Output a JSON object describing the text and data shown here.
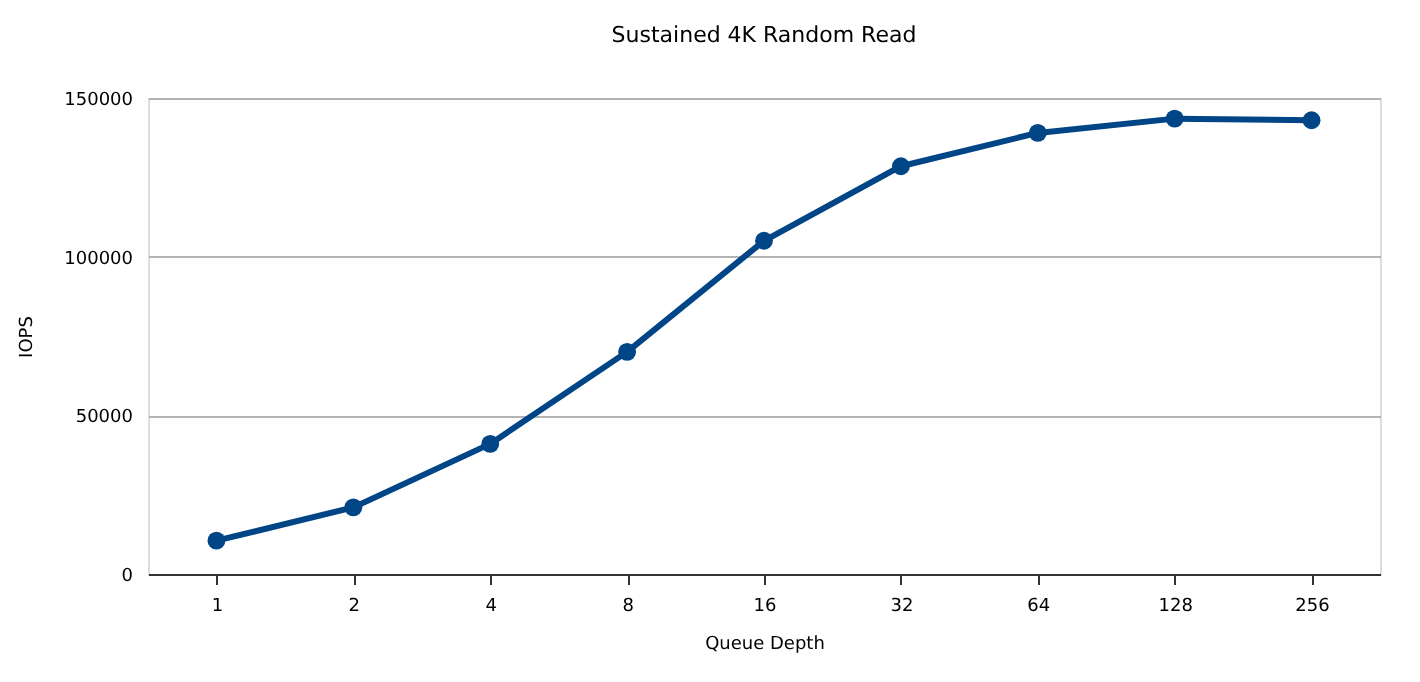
{
  "chart_data": {
    "type": "line",
    "title": "Sustained 4K Random Read",
    "xlabel": "Queue Depth",
    "ylabel": "IOPS",
    "categories": [
      "1",
      "2",
      "4",
      "8",
      "16",
      "32",
      "64",
      "128",
      "256"
    ],
    "series": [
      {
        "color": "#004586",
        "values": [
          10500,
          21000,
          41000,
          70000,
          105000,
          128500,
          139000,
          143500,
          143000
        ]
      }
    ],
    "ylim": [
      0,
      150000
    ],
    "yticks": [
      0,
      50000,
      100000,
      150000
    ],
    "grid": "y",
    "marker": "circle",
    "line_style": "solid"
  }
}
